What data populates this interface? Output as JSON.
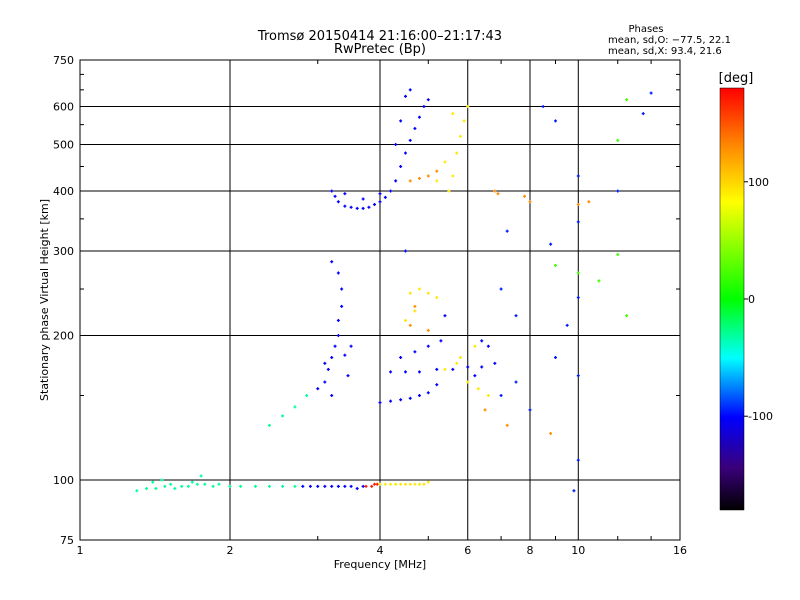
{
  "chart_data": {
    "type": "scatter",
    "title": "Tromsø 20150414 21:16:00–21:17:43",
    "subtitle": "RwPretec (Bp)",
    "xlabel": "Frequency [MHz]",
    "ylabel": "Stationary phase Virtual Height [km]",
    "x_scale": "log2",
    "y_scale": "log",
    "xlim": [
      1,
      16
    ],
    "ylim": [
      75,
      750
    ],
    "x_ticks": [
      1,
      2,
      4,
      6,
      8,
      10,
      16
    ],
    "x_tick_labels": [
      "1",
      "2",
      "4",
      "6",
      "8",
      "10",
      "16"
    ],
    "y_ticks": [
      75,
      100,
      200,
      300,
      400,
      500,
      600,
      750
    ],
    "y_tick_labels": [
      "75",
      "100",
      "200",
      "300",
      "400",
      "500",
      "600",
      "750"
    ],
    "grid": true,
    "phases_box": {
      "title": "Phases",
      "line1": "mean, sd,O: −77.5, 22.1",
      "line2": "mean, sd,X:  93.4, 21.6"
    },
    "colorbar": {
      "label": "[deg]",
      "range": [
        -180,
        180
      ],
      "ticks": [
        100,
        0,
        -100
      ],
      "tick_labels": [
        "100",
        "0",
        "-100"
      ],
      "colors": [
        "#ff0000",
        "#ff8c00",
        "#ffff00",
        "#00ff00",
        "#00ffff",
        "#0000ff",
        "#3a007a",
        "#000000"
      ]
    },
    "series": [
      {
        "points": [
          [
            1.3,
            95
          ],
          [
            1.36,
            96
          ],
          [
            1.42,
            96
          ],
          [
            1.48,
            97
          ],
          [
            1.52,
            98
          ],
          [
            1.55,
            96
          ],
          [
            1.6,
            97
          ],
          [
            1.65,
            97
          ],
          [
            1.72,
            98
          ],
          [
            1.78,
            98
          ],
          [
            1.85,
            97
          ],
          [
            1.9,
            98
          ],
          [
            2.0,
            97
          ],
          [
            2.1,
            97
          ],
          [
            2.25,
            97
          ],
          [
            2.4,
            97
          ],
          [
            2.55,
            97
          ],
          [
            2.7,
            97
          ],
          [
            1.4,
            99
          ],
          [
            1.46,
            100
          ],
          [
            1.68,
            99
          ],
          [
            1.75,
            102
          ],
          [
            2.4,
            130
          ],
          [
            2.55,
            136
          ],
          [
            2.7,
            142
          ],
          [
            2.85,
            150
          ]
        ],
        "phase": -30
      },
      {
        "points": [
          [
            2.8,
            97
          ],
          [
            2.9,
            97
          ],
          [
            3.0,
            97
          ],
          [
            3.1,
            97
          ],
          [
            3.2,
            97
          ],
          [
            3.3,
            97
          ],
          [
            3.4,
            97
          ],
          [
            3.5,
            97
          ],
          [
            3.6,
            96
          ],
          [
            3.7,
            97
          ],
          [
            3.1,
            160
          ],
          [
            3.15,
            170
          ],
          [
            3.2,
            180
          ],
          [
            3.25,
            190
          ],
          [
            3.3,
            200
          ],
          [
            3.3,
            215
          ],
          [
            3.35,
            230
          ],
          [
            3.35,
            250
          ],
          [
            3.3,
            270
          ],
          [
            3.2,
            285
          ],
          [
            3.0,
            155
          ],
          [
            3.1,
            175
          ],
          [
            3.4,
            182
          ],
          [
            3.45,
            165
          ],
          [
            3.5,
            190
          ],
          [
            3.2,
            150
          ],
          [
            3.2,
            400
          ],
          [
            3.25,
            390
          ],
          [
            3.3,
            380
          ],
          [
            3.4,
            372
          ],
          [
            3.5,
            370
          ],
          [
            3.6,
            368
          ],
          [
            3.7,
            368
          ],
          [
            3.8,
            370
          ],
          [
            3.9,
            375
          ],
          [
            4.0,
            380
          ],
          [
            4.1,
            388
          ],
          [
            4.2,
            400
          ],
          [
            4.3,
            420
          ],
          [
            4.4,
            450
          ],
          [
            4.5,
            480
          ],
          [
            4.6,
            510
          ],
          [
            4.7,
            540
          ],
          [
            4.8,
            570
          ],
          [
            4.9,
            600
          ],
          [
            5.0,
            620
          ],
          [
            4.6,
            650
          ],
          [
            4.5,
            630
          ],
          [
            4.4,
            560
          ],
          [
            4.3,
            500
          ],
          [
            3.4,
            395
          ],
          [
            3.7,
            385
          ],
          [
            4.0,
            395
          ],
          [
            4.0,
            145
          ],
          [
            4.2,
            146
          ],
          [
            4.4,
            147
          ],
          [
            4.6,
            148
          ],
          [
            4.8,
            150
          ],
          [
            5.0,
            152
          ],
          [
            5.2,
            158
          ],
          [
            4.2,
            168
          ],
          [
            4.5,
            168
          ],
          [
            4.8,
            168
          ],
          [
            5.2,
            170
          ],
          [
            5.6,
            170
          ],
          [
            6.0,
            172
          ],
          [
            6.4,
            172
          ],
          [
            6.8,
            175
          ],
          [
            4.4,
            180
          ],
          [
            4.7,
            185
          ],
          [
            5.0,
            190
          ],
          [
            5.3,
            195
          ],
          [
            5.4,
            220
          ],
          [
            4.5,
            300
          ],
          [
            6.4,
            195
          ],
          [
            6.6,
            190
          ],
          [
            6.2,
            165
          ]
        ],
        "phase": -100
      },
      {
        "points": [
          [
            3.75,
            97
          ],
          [
            3.85,
            97
          ],
          [
            3.9,
            98
          ],
          [
            3.95,
            98
          ]
        ],
        "phase": 170
      },
      {
        "points": [
          [
            4.0,
            98
          ],
          [
            4.1,
            98
          ],
          [
            4.2,
            98
          ],
          [
            4.3,
            98
          ],
          [
            4.4,
            98
          ],
          [
            4.5,
            98
          ],
          [
            4.6,
            98
          ],
          [
            4.7,
            98
          ],
          [
            4.8,
            98
          ],
          [
            4.9,
            98
          ],
          [
            5.0,
            99
          ],
          [
            4.6,
            245
          ],
          [
            4.8,
            250
          ],
          [
            5.0,
            245
          ],
          [
            5.2,
            240
          ],
          [
            4.7,
            225
          ],
          [
            4.5,
            215
          ],
          [
            5.4,
            170
          ],
          [
            5.7,
            175
          ],
          [
            6.0,
            160
          ],
          [
            6.3,
            155
          ],
          [
            6.6,
            150
          ],
          [
            5.8,
            180
          ],
          [
            6.2,
            190
          ],
          [
            5.5,
            400
          ],
          [
            5.6,
            430
          ],
          [
            5.7,
            480
          ],
          [
            5.8,
            520
          ],
          [
            5.9,
            560
          ],
          [
            6.0,
            600
          ],
          [
            5.6,
            580
          ],
          [
            5.4,
            460
          ],
          [
            5.2,
            420
          ]
        ],
        "phase": 90
      },
      {
        "points": [
          [
            4.6,
            420
          ],
          [
            4.8,
            425
          ],
          [
            5.0,
            430
          ],
          [
            5.2,
            440
          ],
          [
            4.6,
            210
          ],
          [
            4.7,
            230
          ],
          [
            5.0,
            205
          ],
          [
            6.8,
            400
          ],
          [
            6.9,
            395
          ],
          [
            7.8,
            390
          ],
          [
            8.0,
            380
          ],
          [
            10.0,
            375
          ],
          [
            10.5,
            380
          ],
          [
            6.5,
            140
          ],
          [
            7.2,
            130
          ],
          [
            8.8,
            125
          ]
        ],
        "phase": 130
      },
      {
        "points": [
          [
            7.0,
            150
          ],
          [
            7.5,
            160
          ],
          [
            8.0,
            140
          ],
          [
            9.0,
            180
          ],
          [
            10.0,
            165
          ],
          [
            9.5,
            210
          ],
          [
            10.0,
            240
          ],
          [
            7.0,
            250
          ],
          [
            7.5,
            220
          ],
          [
            8.5,
            600
          ],
          [
            9.0,
            560
          ],
          [
            10.0,
            430
          ],
          [
            10.0,
            345
          ],
          [
            12.0,
            400
          ],
          [
            13.5,
            580
          ],
          [
            14.0,
            640
          ],
          [
            8.8,
            310
          ],
          [
            7.2,
            330
          ],
          [
            10.0,
            110
          ],
          [
            9.8,
            95
          ]
        ],
        "phase": -95
      },
      {
        "points": [
          [
            9.0,
            280
          ],
          [
            10.0,
            270
          ],
          [
            11.0,
            260
          ],
          [
            12.5,
            220
          ],
          [
            12.0,
            510
          ],
          [
            12.5,
            620
          ],
          [
            12.0,
            295
          ]
        ],
        "phase": 20
      }
    ]
  }
}
